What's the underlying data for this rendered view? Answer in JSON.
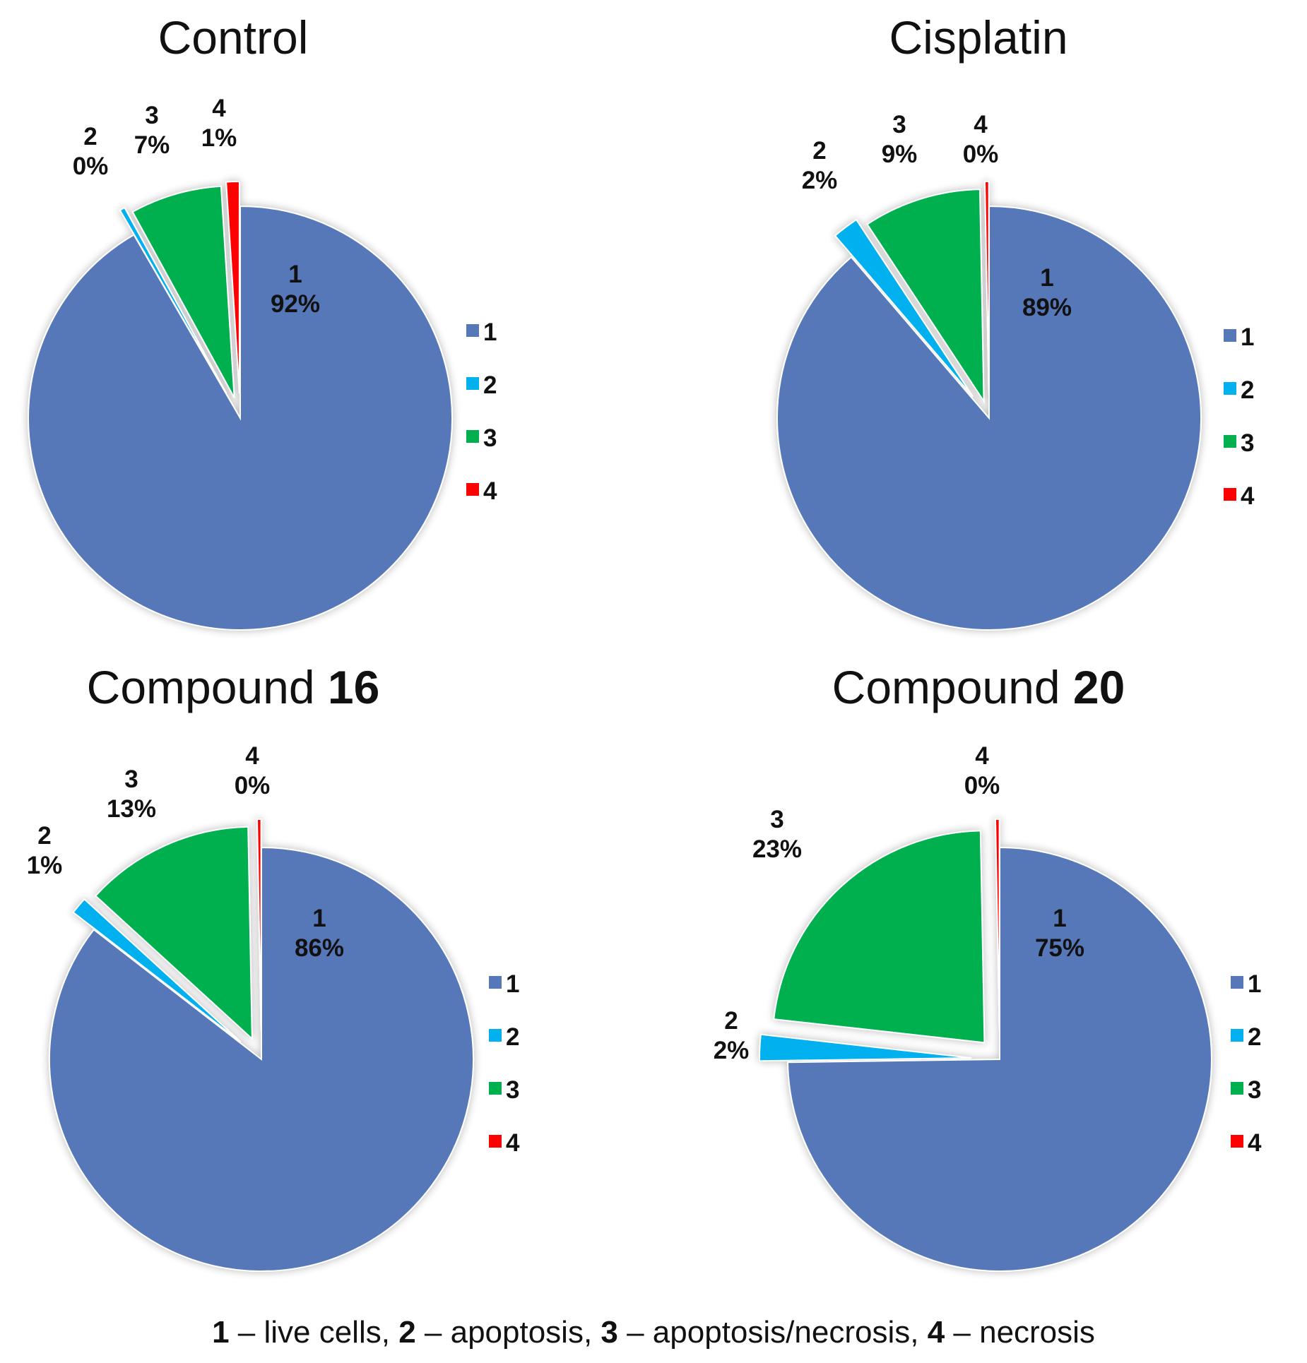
{
  "colors": {
    "1": "#5677b8",
    "2": "#00b0ef",
    "3": "#00b04f",
    "4": "#ff0000"
  },
  "caption": [
    {
      "text": "1",
      "bold": true
    },
    {
      "text": " – live cells, ",
      "bold": false
    },
    {
      "text": "2",
      "bold": true
    },
    {
      "text": " – apoptosis, ",
      "bold": false
    },
    {
      "text": "3",
      "bold": true
    },
    {
      "text": " – apoptosis/necrosis, ",
      "bold": false
    },
    {
      "text": "4",
      "bold": true
    },
    {
      "text": " – necrosis",
      "bold": false
    }
  ],
  "chart_data": [
    {
      "type": "pie",
      "title": "Control",
      "title_bold": "",
      "categories": [
        "1",
        "2",
        "3",
        "4"
      ],
      "values": [
        92,
        0.4,
        7,
        1
      ],
      "labels": [
        "1\n92%",
        "2\n0%",
        "3\n7%",
        "4\n1%"
      ],
      "legend": [
        "1",
        "2",
        "3",
        "4"
      ],
      "legend_position": "right"
    },
    {
      "type": "pie",
      "title": "Cisplatin",
      "title_bold": "",
      "categories": [
        "1",
        "2",
        "3",
        "4"
      ],
      "values": [
        89,
        2,
        9,
        0.3
      ],
      "labels": [
        "1\n89%",
        "2\n2%",
        "3\n9%",
        "4\n0%"
      ],
      "legend": [
        "1",
        "2",
        "3",
        "4"
      ],
      "legend_position": "right"
    },
    {
      "type": "pie",
      "title": "Compound ",
      "title_bold": "16",
      "categories": [
        "1",
        "2",
        "3",
        "4"
      ],
      "values": [
        86,
        1.3,
        13,
        0.3
      ],
      "labels": [
        "1\n86%",
        "2\n1%",
        "3\n13%",
        "4\n0%"
      ],
      "legend": [
        "1",
        "2",
        "3",
        "4"
      ],
      "legend_position": "right"
    },
    {
      "type": "pie",
      "title": "Compound ",
      "title_bold": "20",
      "categories": [
        "1",
        "2",
        "3",
        "4"
      ],
      "values": [
        75,
        2,
        23,
        0.3
      ],
      "labels": [
        "1\n75%",
        "2\n2%",
        "3\n23%",
        "4\n0%"
      ],
      "legend": [
        "1",
        "2",
        "3",
        "4"
      ],
      "legend_position": "right"
    }
  ]
}
